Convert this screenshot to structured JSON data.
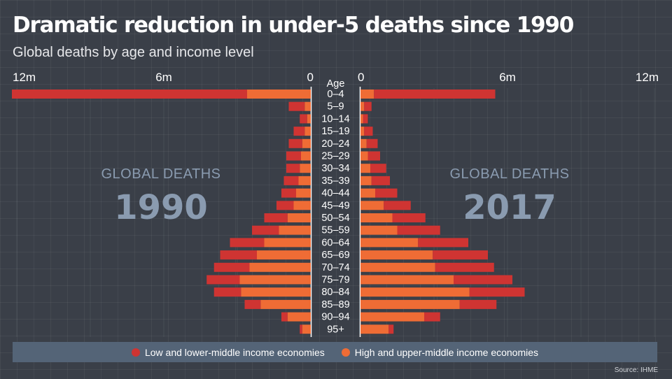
{
  "title": "Dramatic reduction in under-5 deaths since 1990",
  "subtitle": "Global deaths by age and income level",
  "source": "Source: IHME",
  "colors": {
    "low_income": "#cf3432",
    "high_income": "#ef6c35",
    "big_label": "#8a9bb0",
    "background": "#3a3f48",
    "legend_bg": "#546477"
  },
  "legend": {
    "low_label": "Low and lower-middle income economies",
    "high_label": "High and upper-middle income economies"
  },
  "chart_data": {
    "type": "bar",
    "orientation": "horizontal-population-pyramid",
    "unit": "million deaths",
    "axis_label": "Age",
    "x_ticks_left": [
      "12m",
      "6m",
      "0"
    ],
    "x_ticks_right": [
      "0",
      "6m",
      "12m"
    ],
    "xlim": [
      0,
      12
    ],
    "panels": [
      {
        "label": "GLOBAL DEATHS",
        "year": "1990",
        "side": "left"
      },
      {
        "label": "GLOBAL DEATHS",
        "year": "2017",
        "side": "right"
      }
    ],
    "categories": [
      "0–4",
      "5–9",
      "10–14",
      "15–19",
      "20–24",
      "25–29",
      "30–34",
      "35–39",
      "40–44",
      "45–49",
      "50–54",
      "55–59",
      "60–64",
      "65–69",
      "70–74",
      "75–79",
      "80–84",
      "85–89",
      "90–94",
      "95+"
    ],
    "series": [
      {
        "name": "Low and lower-middle income economies",
        "year": "1990",
        "values": [
          9.6,
          0.65,
          0.3,
          0.45,
          0.55,
          0.6,
          0.55,
          0.6,
          0.6,
          0.7,
          0.95,
          1.1,
          1.4,
          1.5,
          1.45,
          1.35,
          1.1,
          0.65,
          0.25,
          0.1
        ]
      },
      {
        "name": "High and upper-middle income economies",
        "year": "1990",
        "values": [
          2.6,
          0.25,
          0.15,
          0.25,
          0.35,
          0.4,
          0.45,
          0.5,
          0.6,
          0.7,
          0.95,
          1.3,
          1.9,
          2.2,
          2.5,
          2.9,
          2.85,
          2.05,
          0.95,
          0.35
        ]
      },
      {
        "name": "Low and lower-middle income economies",
        "year": "2017",
        "values": [
          4.95,
          0.3,
          0.2,
          0.35,
          0.45,
          0.5,
          0.65,
          0.75,
          0.9,
          1.1,
          1.35,
          1.75,
          2.05,
          2.25,
          2.4,
          2.4,
          2.25,
          1.5,
          0.65,
          0.2
        ]
      },
      {
        "name": "High and upper-middle income economies",
        "year": "2017",
        "values": [
          0.55,
          0.15,
          0.1,
          0.15,
          0.25,
          0.3,
          0.4,
          0.45,
          0.6,
          0.95,
          1.3,
          1.5,
          2.35,
          2.95,
          3.05,
          3.8,
          4.45,
          4.05,
          2.6,
          1.15
        ]
      }
    ]
  }
}
